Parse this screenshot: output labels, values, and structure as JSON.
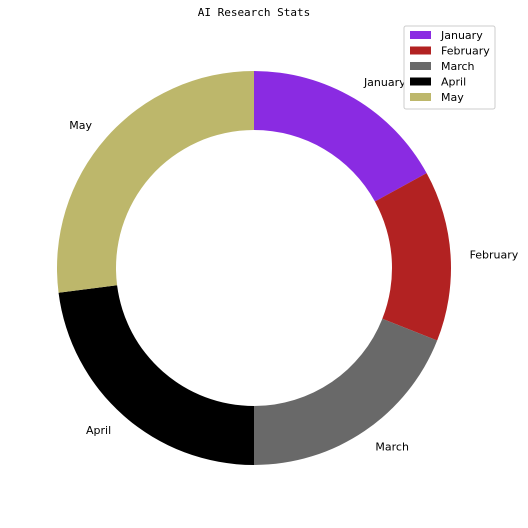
{
  "chart_data": {
    "type": "pie",
    "style": "donut",
    "title": "AI Research Stats",
    "legend_position": "top-right",
    "slices": [
      {
        "label": "January",
        "value": 17,
        "color": "#8a2be2"
      },
      {
        "label": "February",
        "value": 14,
        "color": "#b22222"
      },
      {
        "label": "March",
        "value": 19,
        "color": "#696969"
      },
      {
        "label": "April",
        "value": 23,
        "color": "#000000"
      },
      {
        "label": "May",
        "value": 27,
        "color": "#bdb76b"
      }
    ]
  }
}
